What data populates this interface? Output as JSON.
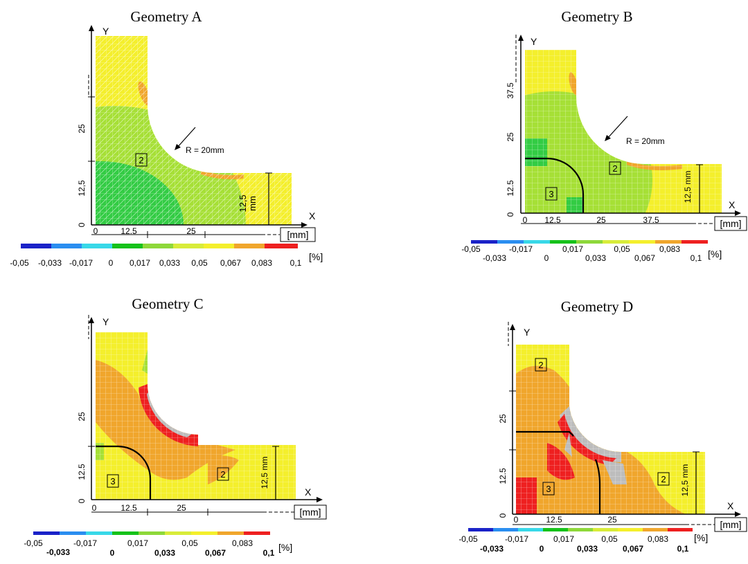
{
  "panels": [
    {
      "title": "Geometry A",
      "axis_y": "Y",
      "axis_x": "X",
      "unit": "[mm]",
      "x_ticks": [
        "0",
        "12.5",
        "25"
      ],
      "y_ticks": [
        "0",
        "12,5",
        "25"
      ],
      "radius_label": "R = 20mm",
      "thickness_label": "12,5",
      "thickness_unit": "mm",
      "regions": [
        "2"
      ],
      "scale_values": [
        "-0,05",
        "-0,033",
        "-0,017",
        "0",
        "0,017",
        "0,033",
        "0,05",
        "0,067",
        "0,083",
        "0,1"
      ],
      "scale_unit": "[%]"
    },
    {
      "title": "Geometry B",
      "axis_y": "Y",
      "axis_x": "X",
      "unit": "[mm]",
      "x_ticks": [
        "0",
        "12.5",
        "25",
        "37.5"
      ],
      "y_ticks": [
        "0",
        "12.5",
        "25",
        "37.5"
      ],
      "radius_label": "R = 20mm",
      "thickness_label": "12,5 mm",
      "regions": [
        "3",
        "2"
      ],
      "scale_top": [
        "-0,05",
        "-0,017",
        "0,017",
        "0,05",
        "0,083"
      ],
      "scale_bottom": [
        "-0,033",
        "0",
        "0,033",
        "0,067",
        "0,1"
      ],
      "scale_unit": "[%]"
    },
    {
      "title": "Geometry C",
      "axis_y": "Y",
      "axis_x": "X",
      "unit": "[mm]",
      "x_ticks": [
        "0",
        "12.5",
        "25"
      ],
      "y_ticks": [
        "0",
        "12.5",
        "25"
      ],
      "thickness_label": "12,5 mm",
      "regions": [
        "3",
        "2"
      ],
      "scale_top": [
        "-0,05",
        "-0,017",
        "0,017",
        "0,05",
        "0,083"
      ],
      "scale_bottom": [
        "-0,033",
        "0",
        "0,033",
        "0,067",
        "0,1"
      ],
      "scale_unit": "[%]"
    },
    {
      "title": "Geometry D",
      "axis_y": "Y",
      "axis_x": "X",
      "unit": "[mm]",
      "x_ticks": [
        "0",
        "12.5",
        "25"
      ],
      "y_ticks": [
        "0",
        "12.5",
        "25"
      ],
      "thickness_label": "12,5 mm",
      "regions": [
        "2",
        "3",
        "2"
      ],
      "scale_top": [
        "-0,05",
        "-0,017",
        "0,017",
        "0,05",
        "0,083"
      ],
      "scale_bottom": [
        "-0,033",
        "0",
        "0,033",
        "0,067",
        "0,1"
      ],
      "scale_unit": "[%]"
    }
  ],
  "colors": {
    "scale": [
      "#1a22c8",
      "#2a8ef0",
      "#38d8e8",
      "#16c21a",
      "#8ed83a",
      "#d8ec3a",
      "#f4ef2c",
      "#f0a62c",
      "#ee2020"
    ],
    "yellow": "#f4ef2c",
    "light_green": "#a6e036",
    "green": "#33cc44",
    "orange": "#f0a62c",
    "red": "#ee2020",
    "grey": "#bdbdbd"
  }
}
